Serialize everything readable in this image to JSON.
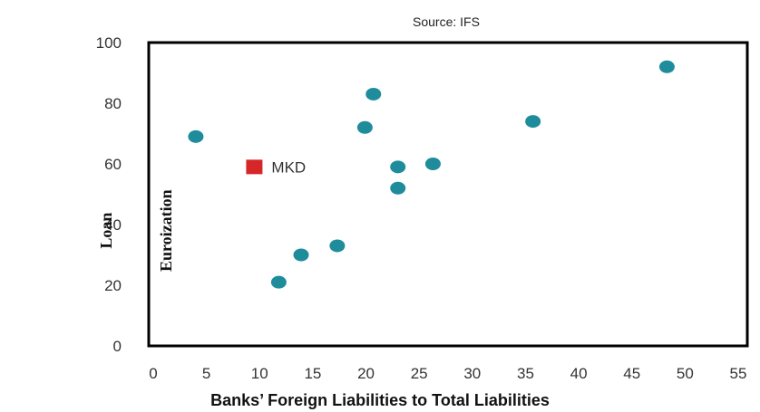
{
  "chart_data": {
    "type": "scatter",
    "subtitle": "Source: IFS",
    "xlabel": "Banks’ Foreign Liabilities to Total Liabilities",
    "ylabel_lines": [
      "Loan",
      "Euroization"
    ],
    "xlim": [
      0,
      55
    ],
    "ylim": [
      0,
      100
    ],
    "xticks": [
      0,
      5,
      10,
      15,
      20,
      25,
      30,
      35,
      40,
      45,
      50,
      55
    ],
    "yticks": [
      0,
      20,
      40,
      60,
      80,
      100
    ],
    "grid": false,
    "legend": "none",
    "series": [
      {
        "marker": "circle",
        "color": "#1f8c9c",
        "points": [
          {
            "x": 4,
            "y": 69
          },
          {
            "x": 11.8,
            "y": 21
          },
          {
            "x": 13.9,
            "y": 30
          },
          {
            "x": 17.3,
            "y": 33
          },
          {
            "x": 19.9,
            "y": 72
          },
          {
            "x": 20.7,
            "y": 83
          },
          {
            "x": 23,
            "y": 59
          },
          {
            "x": 23,
            "y": 52
          },
          {
            "x": 26.3,
            "y": 60
          },
          {
            "x": 35.7,
            "y": 74
          },
          {
            "x": 48.3,
            "y": 92
          }
        ]
      },
      {
        "marker": "square",
        "color": "#d62728",
        "points": [
          {
            "x": 9.5,
            "y": 59,
            "label": "MKD"
          }
        ]
      }
    ]
  }
}
